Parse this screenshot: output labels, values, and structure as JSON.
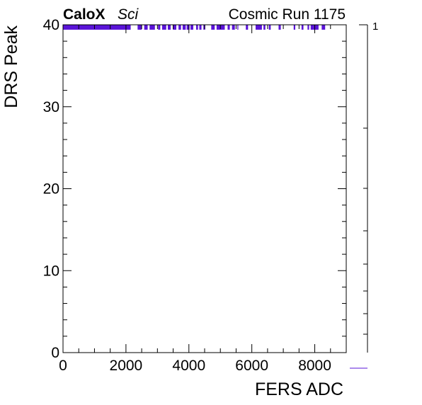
{
  "header": {
    "experiment": "CaloX",
    "experiment_tag": "Sci",
    "run_label": "Cosmic Run 1175"
  },
  "colors": {
    "axis": "#000000",
    "data": "#5a14d8",
    "background": "#ffffff"
  },
  "chart_data": {
    "type": "heatmap",
    "xlabel": "FERS ADC",
    "ylabel": "DRS Peak",
    "xlim": [
      0,
      9000
    ],
    "ylim": [
      0,
      40
    ],
    "x_ticks": [
      0,
      2000,
      4000,
      6000,
      8000
    ],
    "y_ticks": [
      0,
      10,
      20,
      30,
      40
    ],
    "z_ticks": [
      "1"
    ],
    "z_value": 1,
    "grid": false,
    "y_bin": [
      39.4,
      40
    ],
    "cells": [
      [
        0,
        2150
      ],
      [
        2370,
        2500
      ],
      [
        2580,
        2690
      ],
      [
        2750,
        2920
      ],
      [
        3020,
        3090
      ],
      [
        3150,
        3280
      ],
      [
        3330,
        3420
      ],
      [
        3490,
        3600
      ],
      [
        3670,
        3750
      ],
      [
        3800,
        3900
      ],
      [
        3930,
        4020
      ],
      [
        4050,
        4140
      ],
      [
        4230,
        4290
      ],
      [
        4330,
        4400
      ],
      [
        4460,
        4520
      ],
      [
        4710,
        4820
      ],
      [
        4880,
        5140
      ],
      [
        5230,
        5300
      ],
      [
        5370,
        5460
      ],
      [
        5540,
        5570
      ],
      [
        5810,
        5880
      ],
      [
        6120,
        6320
      ],
      [
        6370,
        6430
      ],
      [
        6540,
        6600
      ],
      [
        6850,
        6920
      ],
      [
        7330,
        7380
      ],
      [
        7580,
        7640
      ],
      [
        7770,
        7820
      ],
      [
        7870,
        8120
      ],
      [
        8220,
        8330
      ]
    ]
  }
}
